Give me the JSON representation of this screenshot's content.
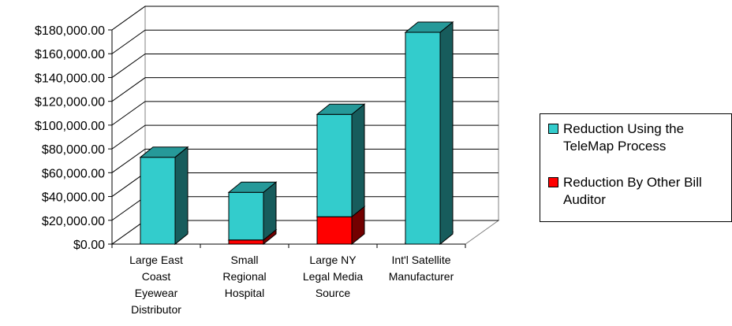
{
  "chart_data": {
    "type": "bar",
    "stacked": true,
    "three_d": true,
    "categories": [
      [
        "Large East",
        "Coast",
        "Eyewear",
        "Distributor"
      ],
      [
        "Small",
        "Regional",
        "Hospital"
      ],
      [
        "Large NY",
        "Legal Media",
        "Source"
      ],
      [
        "Int'l Satellite",
        "Manufacturer"
      ]
    ],
    "series": [
      {
        "name": "Reduction By Other Bill Auditor",
        "values": [
          0,
          3500,
          23000,
          0
        ],
        "color": "#ff0000"
      },
      {
        "name": "Reduction Using the TeleMap Process",
        "values": [
          73000,
          40000,
          86000,
          178000
        ],
        "color": "#33cccc"
      }
    ],
    "ylim": [
      0,
      180000
    ],
    "yticks": [
      0,
      20000,
      40000,
      60000,
      80000,
      100000,
      120000,
      140000,
      160000,
      180000
    ],
    "ytick_labels": [
      "$0.00",
      "$20,000.00",
      "$40,000.00",
      "$60,000.00",
      "$80,000.00",
      "$100,000.00",
      "$120,000.00",
      "$140,000.00",
      "$160,000.00",
      "$180,000.00"
    ],
    "grid": true,
    "legend_position": "right"
  },
  "legend": {
    "items": [
      {
        "label": "Reduction Using the TeleMap Process",
        "color": "#33cccc"
      },
      {
        "label": "Reduction By Other Bill Auditor",
        "color": "#ff0000"
      }
    ]
  }
}
